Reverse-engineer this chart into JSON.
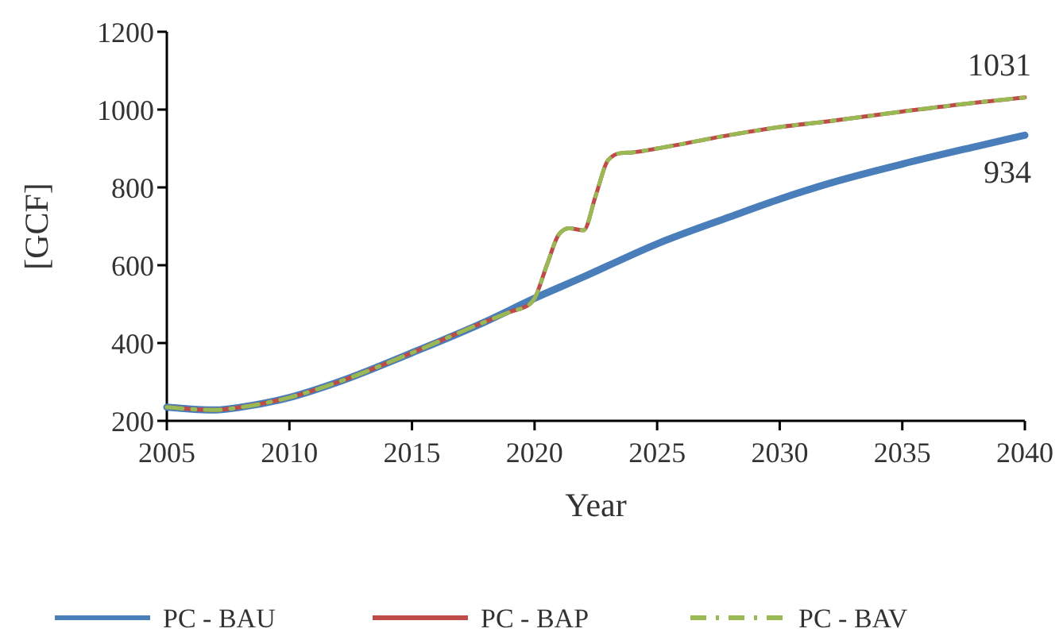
{
  "chart_data": {
    "type": "line",
    "xlabel": "Year",
    "ylabel": "[GCF]",
    "xlim": [
      2005,
      2040
    ],
    "xticks": [
      2005,
      2010,
      2015,
      2020,
      2025,
      2030,
      2035,
      2040
    ],
    "ylim": [
      200,
      1200
    ],
    "yticks": [
      200,
      400,
      600,
      800,
      1000,
      1200
    ],
    "grid": false,
    "legend": "bottom",
    "x": [
      2005,
      2006,
      2007,
      2008,
      2010,
      2012,
      2015,
      2018,
      2019,
      2019.8,
      2020,
      2020.5,
      2021,
      2021.4,
      2022,
      2022.5,
      2023,
      2023.5,
      2024,
      2025,
      2028,
      2030,
      2032,
      2035,
      2038,
      2040
    ],
    "series": [
      {
        "name": "PC - BAU",
        "color": "#4a7ebb",
        "line_style": "solid",
        "x": [
          2005,
          2006,
          2007,
          2008,
          2010,
          2012,
          2015,
          2018,
          2020,
          2022,
          2025,
          2028,
          2030,
          2032,
          2035,
          2038,
          2040
        ],
        "values": [
          235,
          230,
          228,
          235,
          260,
          300,
          375,
          455,
          515,
          570,
          655,
          725,
          770,
          810,
          860,
          905,
          934
        ]
      },
      {
        "name": "PC - BAP",
        "color": "#be4b48",
        "line_style": "solid",
        "values": [
          235,
          230,
          228,
          235,
          260,
          300,
          375,
          455,
          480,
          500,
          515,
          600,
          680,
          695,
          690,
          780,
          870,
          888,
          890,
          900,
          935,
          955,
          970,
          995,
          1018,
          1031
        ]
      },
      {
        "name": "PC - BAV",
        "color": "#98b954",
        "line_style": "dashed",
        "values": [
          235,
          230,
          228,
          235,
          260,
          300,
          375,
          455,
          480,
          500,
          515,
          600,
          680,
          695,
          690,
          780,
          870,
          888,
          890,
          900,
          935,
          955,
          970,
          995,
          1018,
          1031
        ]
      }
    ],
    "annotations": [
      {
        "text": "1031",
        "x": 2040,
        "y": 1031
      },
      {
        "text": "934",
        "x": 2040,
        "y": 934
      }
    ]
  }
}
